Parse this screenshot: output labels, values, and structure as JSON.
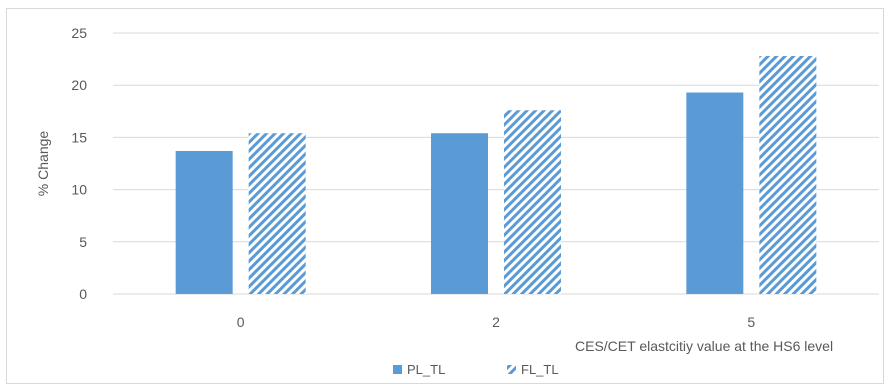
{
  "chart_data": {
    "type": "bar",
    "categories": [
      "0",
      "2",
      "5"
    ],
    "series": [
      {
        "name": "PL_TL",
        "values": [
          13.7,
          15.4,
          19.3
        ],
        "color": "#5b9bd5",
        "pattern": "solid"
      },
      {
        "name": "FL_TL",
        "values": [
          15.4,
          17.6,
          22.8
        ],
        "color": "#5b9bd5",
        "pattern": "diagonal-stripes"
      }
    ],
    "title": "",
    "xlabel": "CES/CET elastcitiy value at the HS6 level",
    "ylabel": "% Change",
    "ylim": [
      0,
      25
    ],
    "yticks": [
      0,
      5,
      10,
      15,
      20,
      25
    ],
    "grid": true,
    "legend_position": "bottom"
  }
}
